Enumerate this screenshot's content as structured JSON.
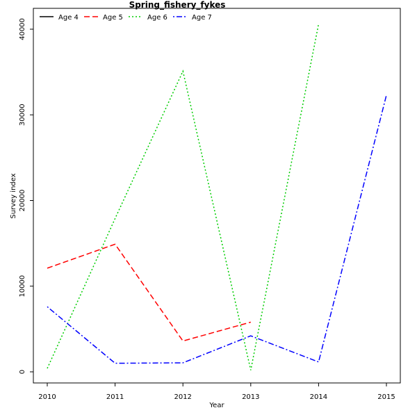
{
  "chart_data": {
    "type": "line",
    "title": "Spring_fishery_fykes",
    "xlabel": "Year",
    "ylabel": "Survey index",
    "xlim": [
      2010,
      2015
    ],
    "ylim": [
      0,
      42000
    ],
    "x_ticks": [
      2010,
      2011,
      2012,
      2013,
      2014,
      2015
    ],
    "y_ticks": [
      0,
      10000,
      20000,
      30000,
      40000
    ],
    "grid": false,
    "legend_position": "top-left",
    "series": [
      {
        "name": "Age 4",
        "color": "#000000",
        "dash": "solid",
        "x": [],
        "values": []
      },
      {
        "name": "Age 5",
        "color": "#ff0000",
        "dash": "dashed",
        "x": [
          2010,
          2011,
          2012,
          2013
        ],
        "values": [
          12100,
          14900,
          3600,
          5800
        ]
      },
      {
        "name": "Age 6",
        "color": "#00cd00",
        "dash": "dotted",
        "x": [
          2010,
          2011,
          2012,
          2013,
          2014
        ],
        "values": [
          400,
          17900,
          35100,
          200,
          40600
        ]
      },
      {
        "name": "Age 7",
        "color": "#0000ff",
        "dash": "dotdash",
        "x": [
          2010,
          2011,
          2012,
          2013,
          2014,
          2015
        ],
        "values": [
          7600,
          1000,
          1050,
          4200,
          1150,
          32300
        ]
      }
    ]
  }
}
